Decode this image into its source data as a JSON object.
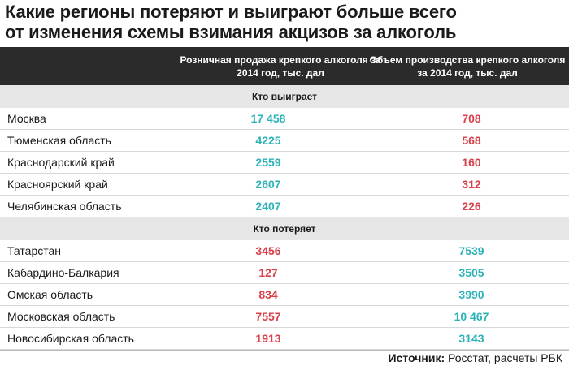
{
  "title_line1": "Какие регионы потеряют и выиграют больше всего",
  "title_line2": "от изменения схемы взимания акцизов за алкоголь",
  "colors": {
    "teal": "#2cb3b8",
    "red": "#d8414a",
    "header_bg": "#2b2b2b",
    "section_bg": "#e6e6e6"
  },
  "chart_data": {
    "type": "table",
    "columns": [
      "Розничная продажа крепкого алкоголя за 2014 год, тыс. дал",
      "Объем производства крепкого алкоголя за 2014 год, тыс. дал"
    ],
    "sections": [
      {
        "label": "Кто выиграет",
        "rows": [
          {
            "region": "Москва",
            "retail": "17 458",
            "production": "708"
          },
          {
            "region": "Тюменская область",
            "retail": "4225",
            "production": "568"
          },
          {
            "region": "Краснодарский край",
            "retail": "2559",
            "production": "160"
          },
          {
            "region": "Красноярский край",
            "retail": "2607",
            "production": "312"
          },
          {
            "region": "Челябинская область",
            "retail": "2407",
            "production": "226"
          }
        ]
      },
      {
        "label": "Кто потеряет",
        "rows": [
          {
            "region": "Татарстан",
            "retail": "3456",
            "production": "7539"
          },
          {
            "region": "Кабардино-Балкария",
            "retail": "127",
            "production": "3505"
          },
          {
            "region": "Омская область",
            "retail": "834",
            "production": "3990"
          },
          {
            "region": "Московская область",
            "retail": "7557",
            "production": "10 467"
          },
          {
            "region": "Новосибирская область",
            "retail": "1913",
            "production": "3143"
          }
        ]
      }
    ]
  },
  "source_label": "Источник:",
  "source_text": " Росстат, расчеты РБК"
}
